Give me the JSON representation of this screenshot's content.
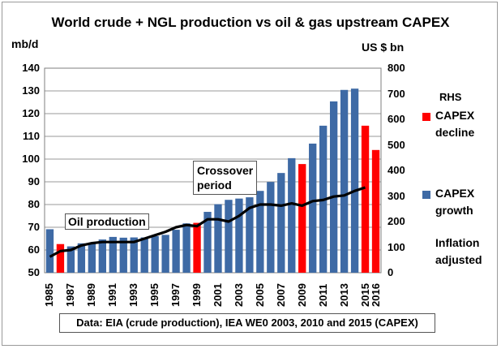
{
  "chart_data": {
    "type": "bar",
    "title": "World crude + NGL production vs oil & gas upstream CAPEX",
    "left_axis": {
      "unit": "mb/d",
      "range": [
        50,
        140
      ],
      "ticks": [
        "50",
        "60",
        "70",
        "80",
        "90",
        "100",
        "110",
        "120",
        "130",
        "140"
      ]
    },
    "right_axis": {
      "unit": "US $ bn",
      "range": [
        0,
        800
      ],
      "ticks": [
        "0",
        "100",
        "200",
        "300",
        "400",
        "500",
        "600",
        "700",
        "800"
      ]
    },
    "x_tick_labels": [
      "1985",
      "1987",
      "1989",
      "1991",
      "1993",
      "1995",
      "1997",
      "1999",
      "2001",
      "2003",
      "2005",
      "2007",
      "2009",
      "2011",
      "2013",
      "2015",
      "2016"
    ],
    "colors": {
      "growth": "#3e6aa5",
      "decline": "#ff0000",
      "line": "#000000"
    },
    "series": [
      {
        "name": "CAPEX growth",
        "axis": "right",
        "points": [
          {
            "year": 1985,
            "value": 170
          },
          {
            "year": 1986,
            "value": 112
          },
          {
            "year": 1987,
            "value": 103
          },
          {
            "year": 1988,
            "value": 115
          },
          {
            "year": 1989,
            "value": 113
          },
          {
            "year": 1990,
            "value": 130
          },
          {
            "year": 1991,
            "value": 140
          },
          {
            "year": 1992,
            "value": 137
          },
          {
            "year": 1993,
            "value": 138
          },
          {
            "year": 1994,
            "value": 138
          },
          {
            "year": 1995,
            "value": 143
          },
          {
            "year": 1996,
            "value": 148
          },
          {
            "year": 1997,
            "value": 168
          },
          {
            "year": 1998,
            "value": 193
          },
          {
            "year": 1999,
            "value": 195
          },
          {
            "year": 2000,
            "value": 238
          },
          {
            "year": 2001,
            "value": 268
          },
          {
            "year": 2002,
            "value": 285
          },
          {
            "year": 2003,
            "value": 290
          },
          {
            "year": 2004,
            "value": 295
          },
          {
            "year": 2005,
            "value": 320
          },
          {
            "year": 2006,
            "value": 355
          },
          {
            "year": 2007,
            "value": 390
          },
          {
            "year": 2008,
            "value": 448
          },
          {
            "year": 2009,
            "value": 425
          },
          {
            "year": 2010,
            "value": 505
          },
          {
            "year": 2011,
            "value": 575
          },
          {
            "year": 2012,
            "value": 670
          },
          {
            "year": 2013,
            "value": 715
          },
          {
            "year": 2014,
            "value": 720
          },
          {
            "year": 2015,
            "value": 575
          },
          {
            "year": 2016,
            "value": 480
          }
        ]
      },
      {
        "name": "CAPEX decline",
        "axis": "right",
        "years": [
          1986,
          1999,
          2009,
          2015,
          2016
        ]
      },
      {
        "name": "Oil production",
        "axis": "left",
        "type": "line",
        "points": [
          {
            "year": 1985,
            "value": 57
          },
          {
            "year": 1986,
            "value": 59.5
          },
          {
            "year": 1987,
            "value": 60
          },
          {
            "year": 1988,
            "value": 62
          },
          {
            "year": 1989,
            "value": 63
          },
          {
            "year": 1990,
            "value": 63.5
          },
          {
            "year": 1991,
            "value": 63.5
          },
          {
            "year": 1992,
            "value": 63.5
          },
          {
            "year": 1993,
            "value": 63.5
          },
          {
            "year": 1994,
            "value": 65
          },
          {
            "year": 1995,
            "value": 66.5
          },
          {
            "year": 1996,
            "value": 68
          },
          {
            "year": 1997,
            "value": 70
          },
          {
            "year": 1998,
            "value": 71
          },
          {
            "year": 1999,
            "value": 70.5
          },
          {
            "year": 2000,
            "value": 73.5
          },
          {
            "year": 2001,
            "value": 73.5
          },
          {
            "year": 2002,
            "value": 72.5
          },
          {
            "year": 2003,
            "value": 75
          },
          {
            "year": 2004,
            "value": 78.5
          },
          {
            "year": 2005,
            "value": 80
          },
          {
            "year": 2006,
            "value": 80
          },
          {
            "year": 2007,
            "value": 79.5
          },
          {
            "year": 2008,
            "value": 80.5
          },
          {
            "year": 2009,
            "value": 79.5
          },
          {
            "year": 2010,
            "value": 81.5
          },
          {
            "year": 2011,
            "value": 82
          },
          {
            "year": 2012,
            "value": 83.5
          },
          {
            "year": 2013,
            "value": 84
          },
          {
            "year": 2014,
            "value": 86
          },
          {
            "year": 2015,
            "value": 87.5
          }
        ]
      }
    ],
    "annotations": {
      "oil_production": "Oil production",
      "crossover_line1": "Crossover",
      "crossover_line2": "period"
    },
    "legend": {
      "placement": "right",
      "title": "RHS",
      "decline_line1": "CAPEX",
      "decline_line2": "decline",
      "growth_line1": "CAPEX",
      "growth_line2": "growth",
      "inflation_line1": "Inflation",
      "inflation_line2": "adjusted"
    },
    "source": "Data: EIA (crude production), IEA WE0 2003,  2010 and 2015 (CAPEX)"
  }
}
